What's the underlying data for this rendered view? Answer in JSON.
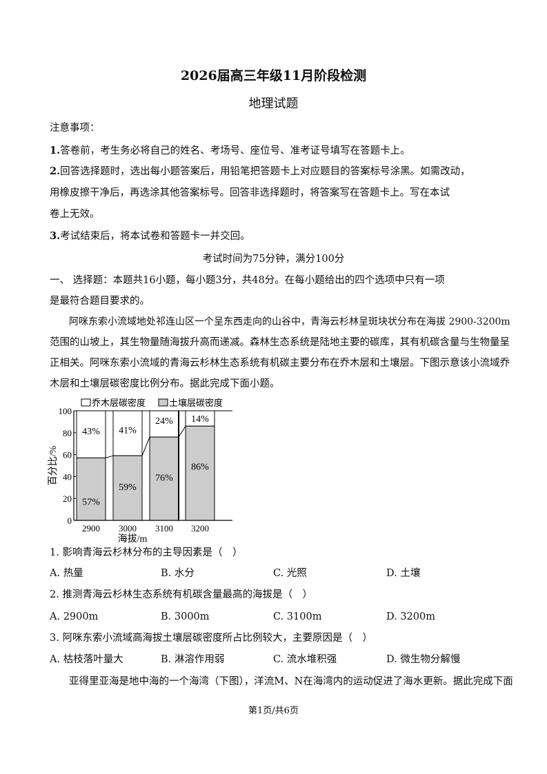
{
  "header": {
    "title": "2026届高三年级11月阶段检测",
    "subject": "地理试题"
  },
  "notice": {
    "heading": "注意事项：",
    "items": [
      {
        "num": "1.",
        "text": "答卷前，考生务必将自己的姓名、考场号、座位号、准考证号填写在答题卡上。"
      },
      {
        "num": "2.",
        "text": "回答选择题时，选出每小题答案后，用铅笔把答题卡上对应题目的答案标号涂黑。如需改动，",
        "cont1": "用橡皮擦干净后，再选涂其他答案标号。回答非选择题时，将答案写在答题卡上。写在本试",
        "cont2": "卷上无效。"
      },
      {
        "num": "3.",
        "text": "考试结束后，将本试卷和答题卡一并交回。"
      }
    ],
    "time": "考试时间为75分钟，满分100分"
  },
  "section1": {
    "line1": "一、 选择题：本题共16小题，每小题3分，共48分。在每小题给出的四个选项中只有一项",
    "line2": "是最符合题目要求的。"
  },
  "passage1": [
    "阿咪东索小流域地处祁连山区一个呈东西走向的山谷中，青海云杉林呈斑块状分布在海拔 2900-3200m",
    "范围的山坡上，其生物量随海拔升高而递减。森林生态系统是陆地主要的碳库，其有机碳含量与生物量呈",
    "正相关。阿咪东索小流域的青海云杉林生态系统有机碳主要分布在乔木层和土壤层。下图示意该小流域乔",
    "木层和土壤层碳密度比例分布。据此完成下面小题。"
  ],
  "chart_data": {
    "type": "bar",
    "stacked": true,
    "categories": [
      "2900",
      "3000",
      "3100",
      "3200"
    ],
    "series": [
      {
        "name": "土壤层碳密度",
        "values": [
          57,
          59,
          76,
          86
        ],
        "labels": [
          "57%",
          "59%",
          "76%",
          "86%"
        ],
        "color": "#cccccc"
      },
      {
        "name": "乔木层碳密度",
        "values": [
          43,
          41,
          24,
          14
        ],
        "labels": [
          "43%",
          "41%",
          "24%",
          "14%"
        ],
        "color": "#ffffff"
      }
    ],
    "xlabel": "海拔/m",
    "ylabel": "百分比/%",
    "ylim": [
      0,
      100
    ],
    "yticks": [
      "0",
      "20",
      "40",
      "60",
      "80",
      "100"
    ],
    "legend": "top",
    "grid": false
  },
  "questions": [
    {
      "stem": "1. 影响青海云杉林分布的主导因素是（　）",
      "options": [
        "A. 热量",
        "B. 水分",
        "C. 光照",
        "D. 土壤"
      ]
    },
    {
      "stem": "2. 推测青海云杉林生态系统有机碳含量最高的海拔是（　）",
      "options": [
        "A. 2900m",
        "B. 3000m",
        "C. 3100m",
        "D. 3200m"
      ]
    },
    {
      "stem": "3. 阿咪东索小流域高海拔土壤层碳密度所占比例较大，主要原因是（　）",
      "options": [
        "A. 枯枝落叶量大",
        "B. 淋溶作用弱",
        "C. 流水堆积强",
        "D. 微生物分解慢"
      ]
    }
  ],
  "passage2": "亚得里亚海是地中海的一个海湾（下图），洋流M、N在海湾内的运动促进了海水更新。据此完成下面",
  "footer": "第1页/共6页"
}
